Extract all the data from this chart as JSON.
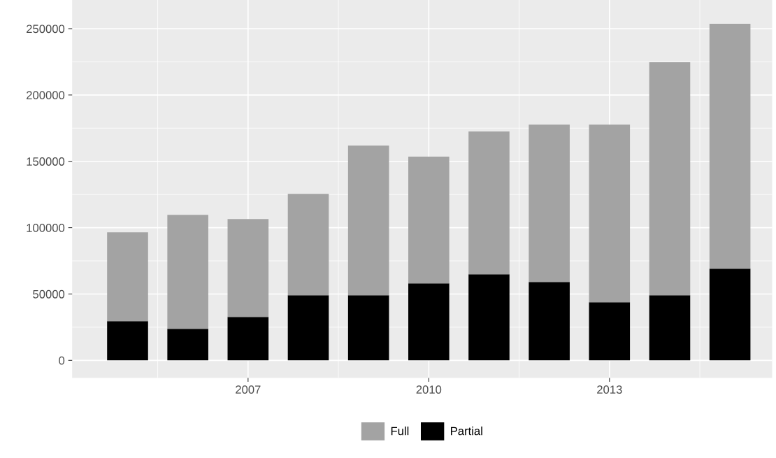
{
  "chart_data": {
    "type": "bar",
    "stacked": true,
    "x": [
      2005,
      2006,
      2007,
      2008,
      2009,
      2010,
      2011,
      2012,
      2013,
      2014,
      2015
    ],
    "series": [
      {
        "name": "Partial",
        "color": "#000000",
        "values": [
          29500,
          23700,
          32700,
          49000,
          49000,
          58000,
          64900,
          59100,
          43800,
          49000,
          69100
        ]
      },
      {
        "name": "Full",
        "color": "#a3a3a3",
        "values": [
          67000,
          86000,
          73800,
          76500,
          112900,
          95500,
          107600,
          118600,
          133900,
          175700,
          184600
        ]
      }
    ],
    "xlim": [
      2004.08,
      2015.7
    ],
    "xticks": [
      2007,
      2010,
      2013
    ],
    "ylim": [
      -13200,
      271600
    ],
    "yticks": [
      0,
      50000,
      100000,
      150000,
      200000,
      250000
    ],
    "grid": true,
    "legend": "bottom"
  }
}
